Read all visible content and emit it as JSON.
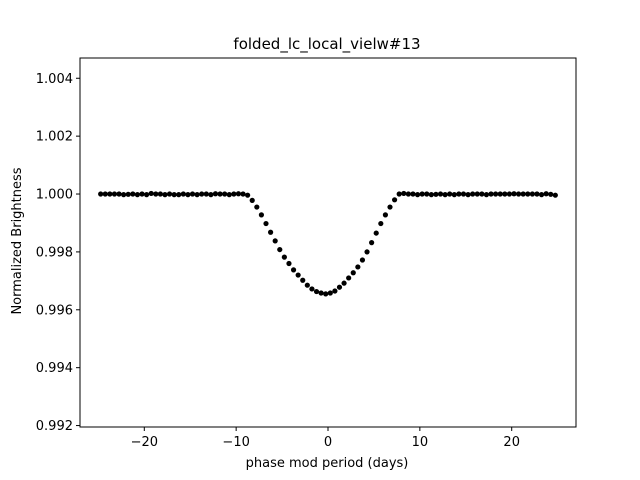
{
  "chart_data": {
    "type": "scatter",
    "title": "folded_lc_local_vielw#13",
    "xlabel": "phase mod period (days)",
    "ylabel": "Normalized Brightness",
    "xlim": [
      -27,
      27
    ],
    "ylim": [
      0.99195,
      1.0047
    ],
    "xticks": [
      -20,
      -10,
      0,
      10,
      20
    ],
    "xtick_labels": [
      "−20",
      "−10",
      "0",
      "10",
      "20"
    ],
    "yticks": [
      0.992,
      0.994,
      0.996,
      0.998,
      1.0,
      1.002,
      1.004
    ],
    "ytick_labels": [
      "0.992",
      "0.994",
      "0.996",
      "0.998",
      "1.000",
      "1.002",
      "1.004"
    ],
    "grid": false,
    "marker_color": "#000000",
    "series": [
      {
        "x": [
          -24.75,
          -24.25,
          -23.75,
          -23.25,
          -22.75,
          -22.25,
          -21.75,
          -21.25,
          -20.75,
          -20.25,
          -19.75,
          -19.25,
          -18.75,
          -18.25,
          -17.75,
          -17.25,
          -16.75,
          -16.25,
          -15.75,
          -15.25,
          -14.75,
          -14.25,
          -13.75,
          -13.25,
          -12.75,
          -12.25,
          -11.75,
          -11.25,
          -10.75,
          -10.25,
          -9.75,
          -9.25,
          -8.75,
          -8.25,
          -7.75,
          -7.25,
          -6.75,
          -6.25,
          -5.75,
          -5.25,
          -4.75,
          -4.25,
          -3.75,
          -3.25,
          -2.75,
          -2.25,
          -1.75,
          -1.25,
          -0.75,
          -0.25,
          0.25,
          0.75,
          1.25,
          1.75,
          2.25,
          2.75,
          3.25,
          3.75,
          4.25,
          4.75,
          5.25,
          5.75,
          6.25,
          6.75,
          7.25,
          7.75,
          8.25,
          8.75,
          9.25,
          9.75,
          10.25,
          10.75,
          11.25,
          11.75,
          12.25,
          12.75,
          13.25,
          13.75,
          14.25,
          14.75,
          15.25,
          15.75,
          16.25,
          16.75,
          17.25,
          17.75,
          18.25,
          18.75,
          19.25,
          19.75,
          20.25,
          20.75,
          21.25,
          21.75,
          22.25,
          22.75,
          23.25,
          23.75,
          24.25,
          24.75
        ],
        "y": [
          1.0,
          1.0,
          1.0,
          1.0,
          1.0,
          0.99998,
          0.99999,
          1.0,
          0.99998,
          1.0,
          0.99998,
          1.00002,
          1.0,
          1.0,
          0.99998,
          1.0,
          0.99998,
          0.99998,
          1.0,
          0.99998,
          1.0,
          0.99998,
          1.0,
          1.0,
          0.99998,
          1.00001,
          1.0,
          1.0,
          0.99998,
          1.0,
          1.00001,
          1.0,
          0.99996,
          0.99978,
          0.99955,
          0.99928,
          0.99898,
          0.99868,
          0.99838,
          0.99808,
          0.99782,
          0.9976,
          0.99738,
          0.9972,
          0.99702,
          0.99685,
          0.99672,
          0.99663,
          0.99658,
          0.99655,
          0.99658,
          0.99665,
          0.99678,
          0.99692,
          0.9971,
          0.99728,
          0.99748,
          0.99772,
          0.998,
          0.99832,
          0.99865,
          0.99898,
          0.99928,
          0.99955,
          0.9998,
          1.0,
          1.00002,
          1.0,
          1.0,
          0.99998,
          1.0,
          1.0,
          0.99998,
          0.99999,
          1.0,
          0.99998,
          1.0,
          0.99998,
          1.0,
          1.0,
          0.99998,
          1.0,
          1.0,
          1.0,
          0.99998,
          1.0,
          1.0,
          1.0,
          1.0,
          1.0,
          1.00001,
          1.0,
          1.0,
          1.0,
          1.0,
          1.0,
          0.99998,
          1.00001,
          0.99999,
          0.99996
        ]
      }
    ]
  }
}
